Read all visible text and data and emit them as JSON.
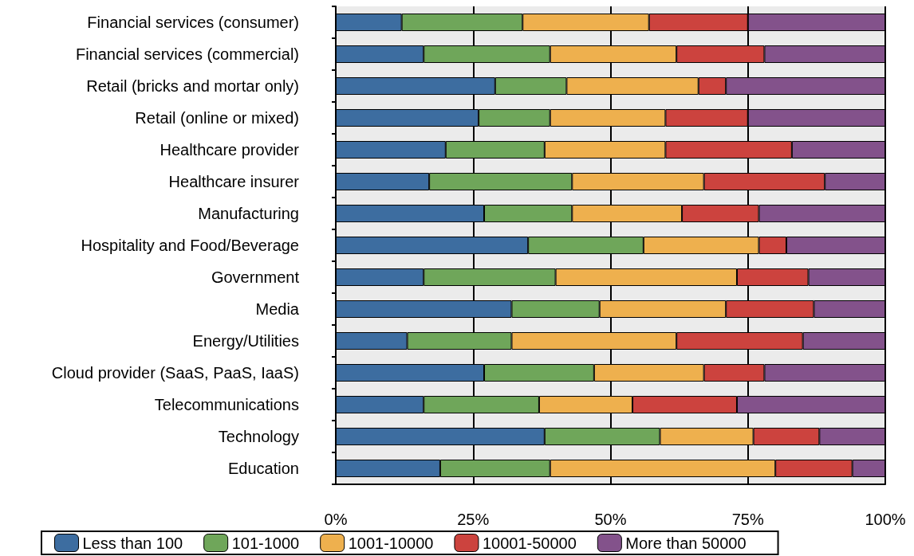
{
  "chart_data": {
    "type": "bar",
    "orientation": "horizontal",
    "stacked": true,
    "categories": [
      "Financial services (consumer)",
      "Financial services (commercial)",
      "Retail (bricks and mortar only)",
      "Retail (online or mixed)",
      "Healthcare provider",
      "Healthcare insurer",
      "Manufacturing",
      "Hospitality and Food/Beverage",
      "Government",
      "Media",
      "Energy/Utilities",
      "Cloud provider (SaaS, PaaS, IaaS)",
      "Telecommunications",
      "Technology",
      "Education"
    ],
    "series": [
      {
        "name": "Less than 100",
        "color": "#3d6da0",
        "values": [
          12,
          16,
          29,
          26,
          20,
          17,
          27,
          35,
          16,
          32,
          13,
          27,
          16,
          38,
          19
        ]
      },
      {
        "name": "101-1000",
        "color": "#6fa65a",
        "values": [
          22,
          23,
          13,
          13,
          18,
          26,
          16,
          21,
          24,
          16,
          19,
          20,
          21,
          21,
          20
        ]
      },
      {
        "name": "1001-10000",
        "color": "#eeb04e",
        "values": [
          23,
          23,
          24,
          21,
          22,
          24,
          20,
          21,
          33,
          23,
          30,
          20,
          17,
          17,
          41
        ]
      },
      {
        "name": "10001-50000",
        "color": "#cc433e",
        "values": [
          18,
          16,
          5,
          15,
          23,
          22,
          14,
          5,
          13,
          16,
          23,
          11,
          19,
          12,
          14
        ]
      },
      {
        "name": "More than 50000",
        "color": "#83528b",
        "values": [
          25,
          22,
          29,
          25,
          17,
          11,
          23,
          18,
          14,
          13,
          15,
          22,
          27,
          12,
          6
        ]
      }
    ],
    "xlim": [
      0,
      100
    ],
    "xticks": [
      {
        "value": 0,
        "label": "0%"
      },
      {
        "value": 25,
        "label": "25%"
      },
      {
        "value": 50,
        "label": "50%"
      },
      {
        "value": 75,
        "label": "75%"
      },
      {
        "value": 100,
        "label": "100%"
      }
    ],
    "grid": "x",
    "legend": "bottom"
  }
}
